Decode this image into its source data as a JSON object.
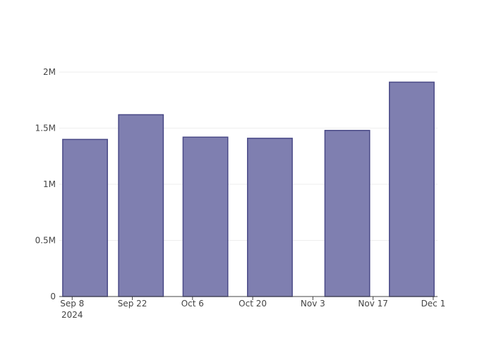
{
  "chart_data": {
    "type": "bar",
    "x": [
      "2024-09-11",
      "2024-09-24",
      "2024-10-09",
      "2024-10-24",
      "2024-11-11",
      "2024-11-26"
    ],
    "values": [
      1400000,
      1620000,
      1420000,
      1410000,
      1480000,
      1910000
    ],
    "color": "#7f7fb0",
    "edge_color": "#4a4a87",
    "xlim": [
      "2024-09-05",
      "2024-12-02"
    ],
    "xticks": [
      {
        "value": "2024-09-08",
        "label": "Sep 8"
      },
      {
        "value": "2024-09-22",
        "label": "Sep 22"
      },
      {
        "value": "2024-10-06",
        "label": "Oct 6"
      },
      {
        "value": "2024-10-20",
        "label": "Oct 20"
      },
      {
        "value": "2024-11-03",
        "label": "Nov 3"
      },
      {
        "value": "2024-11-17",
        "label": "Nov 17"
      },
      {
        "value": "2024-12-01",
        "label": "Dec 1"
      }
    ],
    "xtick_year": {
      "value": "2024-09-08",
      "label": "2024"
    },
    "ylim": [
      0,
      2013000
    ],
    "yticks": [
      0,
      {
        "value": 500000,
        "label": "0.5M"
      },
      {
        "value": 1000000,
        "label": "1M"
      },
      {
        "value": 1500000,
        "label": "1.5M"
      },
      {
        "value": 2000000,
        "label": "2M"
      }
    ],
    "grid": true
  }
}
